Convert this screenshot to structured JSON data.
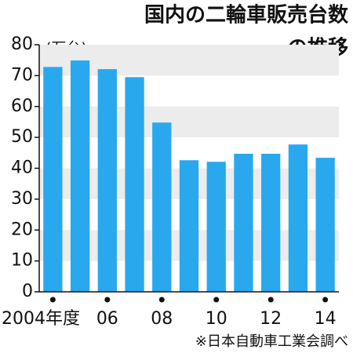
{
  "chart_data": {
    "type": "bar",
    "title": [
      "国内の二輪車販売台数",
      "の推移"
    ],
    "unit": "(万台)",
    "source": "※日本自動車工業会調べ",
    "categories": [
      "2004年度",
      null,
      "06",
      null,
      "08",
      null,
      "10",
      null,
      "12",
      null,
      "14"
    ],
    "values": [
      72.8,
      74.9,
      72.1,
      69.5,
      54.8,
      42.6,
      42.1,
      44.7,
      44.7,
      47.7,
      43.4
    ],
    "color": "#2aa8ee",
    "ylim": [
      0,
      80
    ],
    "yticks": [
      0,
      10,
      20,
      30,
      40,
      50,
      60,
      70,
      80
    ],
    "bands": true
  }
}
